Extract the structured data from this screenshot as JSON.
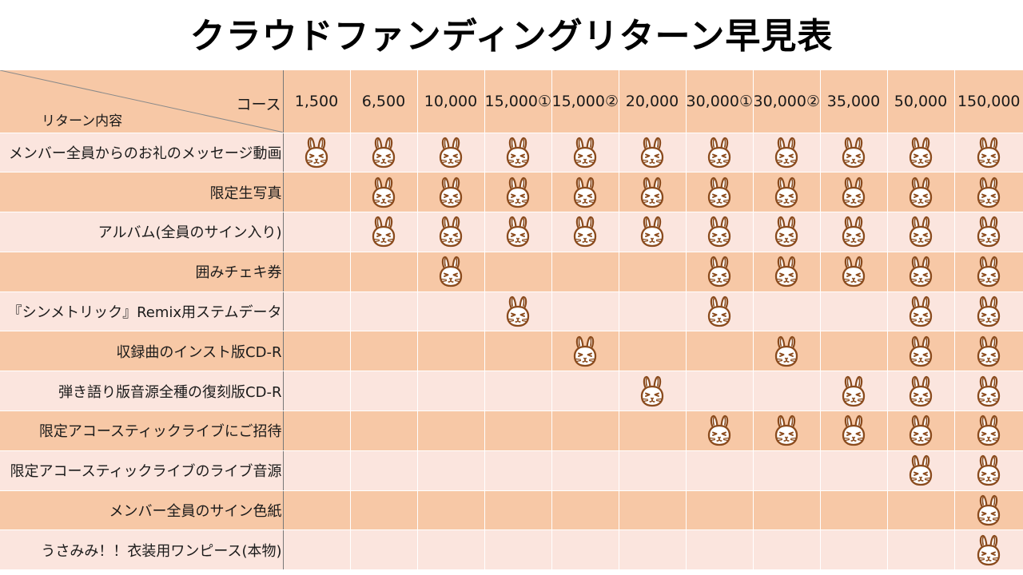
{
  "title": "クラウドファンディングリターン早見表",
  "header": {
    "course_label": "コース",
    "return_label": "リターン内容",
    "courses": [
      "1,500",
      "6,500",
      "10,000",
      "15,000①",
      "15,000②",
      "20,000",
      "30,000①",
      "30,000②",
      "35,000",
      "50,000",
      "150,000"
    ]
  },
  "rows": [
    {
      "label": "メンバー全員からのお礼のメッセージ動画",
      "marks": [
        1,
        1,
        1,
        1,
        1,
        1,
        1,
        1,
        1,
        1,
        1
      ]
    },
    {
      "label": "限定生写真",
      "marks": [
        0,
        1,
        1,
        1,
        1,
        1,
        1,
        1,
        1,
        1,
        1
      ]
    },
    {
      "label": "アルバム(全員のサイン入り)",
      "marks": [
        0,
        1,
        1,
        1,
        1,
        1,
        1,
        1,
        1,
        1,
        1
      ]
    },
    {
      "label": "囲みチェキ券",
      "marks": [
        0,
        0,
        1,
        0,
        0,
        0,
        1,
        1,
        1,
        1,
        1
      ]
    },
    {
      "label": "『シンメトリック』Remix用ステムデータ",
      "marks": [
        0,
        0,
        0,
        1,
        0,
        0,
        1,
        0,
        0,
        1,
        1
      ]
    },
    {
      "label": "収録曲のインスト版CD-R",
      "marks": [
        0,
        0,
        0,
        0,
        1,
        0,
        0,
        1,
        0,
        1,
        1
      ]
    },
    {
      "label": "弾き語り版音源全種の復刻版CD-R",
      "marks": [
        0,
        0,
        0,
        0,
        0,
        1,
        0,
        0,
        1,
        1,
        1
      ]
    },
    {
      "label": "限定アコースティックライブにご招待",
      "marks": [
        0,
        0,
        0,
        0,
        0,
        0,
        1,
        1,
        1,
        1,
        1
      ]
    },
    {
      "label": "限定アコースティックライブのライブ音源",
      "marks": [
        0,
        0,
        0,
        0,
        0,
        0,
        0,
        0,
        0,
        1,
        1
      ]
    },
    {
      "label": "メンバー全員のサイン色紙",
      "marks": [
        0,
        0,
        0,
        0,
        0,
        0,
        0,
        0,
        0,
        0,
        1
      ]
    },
    {
      "label": "うさみみ！！衣装用ワンピース(本物)",
      "marks": [
        0,
        0,
        0,
        0,
        0,
        0,
        0,
        0,
        0,
        0,
        1
      ]
    }
  ],
  "mark_icon": "bunny-face-icon",
  "colors": {
    "header_bg": "#f7c8a6",
    "row_light": "#fbe5de",
    "row_dark": "#f7c8a6",
    "icon_stroke": "#8a4a1c"
  }
}
